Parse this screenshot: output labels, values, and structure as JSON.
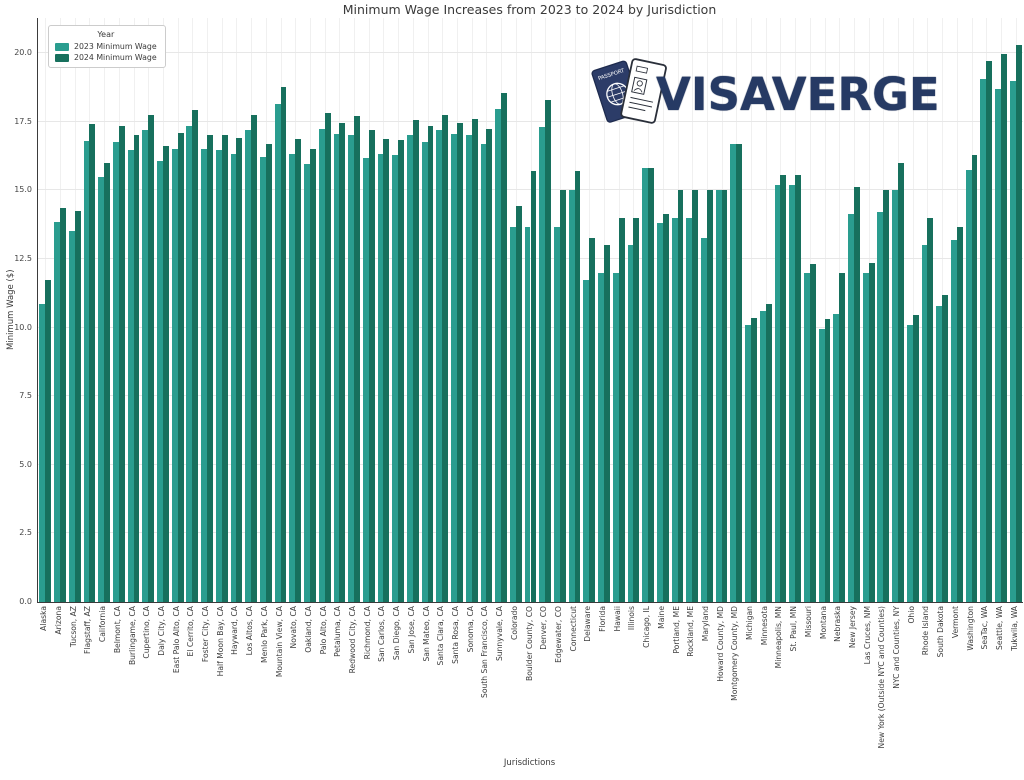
{
  "logo": {
    "text": "VISAVERGE"
  },
  "colors": {
    "bar_2023": "#2a9d8f",
    "bar_2024": "#17705d",
    "logo_navy": "#263a64",
    "grid": "#e7e7e7",
    "spine": "#3b3b3b"
  },
  "chart_data": {
    "type": "bar",
    "title": "Minimum Wage Increases from 2023 to 2024 by Jurisdiction",
    "xlabel": "Jurisdictions",
    "ylabel": "Minimum Wage ($)",
    "ylim": [
      0,
      21.3
    ],
    "y_ticks": [
      0,
      2.5,
      5,
      7.5,
      10,
      12.5,
      15,
      17.5,
      20
    ],
    "grid": true,
    "legend_title": "Year",
    "legend_position": "upper left",
    "categories": [
      "Alaska",
      "Arizona",
      "Tucson, AZ",
      "Flagstaff, AZ",
      "California",
      "Belmont, CA",
      "Burlingame, CA",
      "Cupertino, CA",
      "Daly City, CA",
      "East Palo Alto, CA",
      "El Cerrito, CA",
      "Foster City, CA",
      "Half Moon Bay, CA",
      "Hayward, CA",
      "Los Altos, CA",
      "Menlo Park, CA",
      "Mountain View, CA",
      "Novato, CA",
      "Oakland, CA",
      "Palo Alto, CA",
      "Petaluma, CA",
      "Redwood City, CA",
      "Richmond, CA",
      "San Carlos, CA",
      "San Diego, CA",
      "San Jose, CA",
      "San Mateo, CA",
      "Santa Clara, CA",
      "Santa Rosa, CA",
      "Sonoma, CA",
      "South San Francisco, CA",
      "Sunnyvale, CA",
      "Colorado",
      "Boulder County, CO",
      "Denver, CO",
      "Edgewater, CO",
      "Connecticut",
      "Delaware",
      "Florida",
      "Hawaii",
      "Illinois",
      "Chicago, IL",
      "Maine",
      "Portland, ME",
      "Rockland, ME",
      "Maryland",
      "Howard County, MD",
      "Montgomery County, MD",
      "Michigan",
      "Minnesota",
      "Minneapolis, MN",
      "St. Paul, MN",
      "Missouri",
      "Montana",
      "Nebraska",
      "New Jersey",
      "Las Cruces, NM",
      "New York (Outside NYC and Counties)",
      "NYC and Counties, NY",
      "Ohio",
      "Rhode Island",
      "South Dakota",
      "Vermont",
      "Washington",
      "SeaTac, WA",
      "Seattle, WA",
      "Tukwila, WA"
    ],
    "series": [
      {
        "name": "2023 Minimum Wage",
        "color": "#2a9d8f",
        "values": [
          10.85,
          13.85,
          13.5,
          16.8,
          15.5,
          16.75,
          16.47,
          17.2,
          16.07,
          16.5,
          17.35,
          16.5,
          16.45,
          16.34,
          17.2,
          16.2,
          18.15,
          16.32,
          15.97,
          17.25,
          17.06,
          17.0,
          16.17,
          16.32,
          16.3,
          17.0,
          16.75,
          17.2,
          17.06,
          17.0,
          16.7,
          17.95,
          13.65,
          13.65,
          17.29,
          13.65,
          15.0,
          11.75,
          12.0,
          12.0,
          13.0,
          15.8,
          13.8,
          14.0,
          14.0,
          13.25,
          15.0,
          16.7,
          10.1,
          10.59,
          15.19,
          15.19,
          12.0,
          9.95,
          10.5,
          14.13,
          12.0,
          14.2,
          15.0,
          10.1,
          13.0,
          10.8,
          13.18,
          15.74,
          19.06,
          18.69,
          18.99
        ]
      },
      {
        "name": "2024 Minimum Wage",
        "color": "#17705d",
        "values": [
          11.73,
          14.35,
          14.25,
          17.4,
          16.0,
          17.35,
          17.03,
          17.75,
          16.62,
          17.1,
          17.92,
          17.0,
          17.01,
          16.9,
          17.75,
          16.7,
          18.75,
          16.86,
          16.5,
          17.8,
          17.45,
          17.7,
          17.2,
          16.87,
          16.85,
          17.55,
          17.35,
          17.75,
          17.45,
          17.6,
          17.25,
          18.55,
          14.42,
          15.69,
          18.29,
          15.02,
          15.69,
          13.25,
          13.0,
          14.0,
          14.0,
          15.8,
          14.15,
          15.0,
          15.0,
          15.0,
          15.0,
          16.7,
          10.33,
          10.85,
          15.57,
          15.57,
          12.3,
          10.3,
          12.0,
          15.13,
          12.36,
          15.0,
          16.0,
          10.45,
          14.0,
          11.2,
          13.67,
          16.28,
          19.71,
          19.97,
          20.29
        ]
      }
    ]
  }
}
